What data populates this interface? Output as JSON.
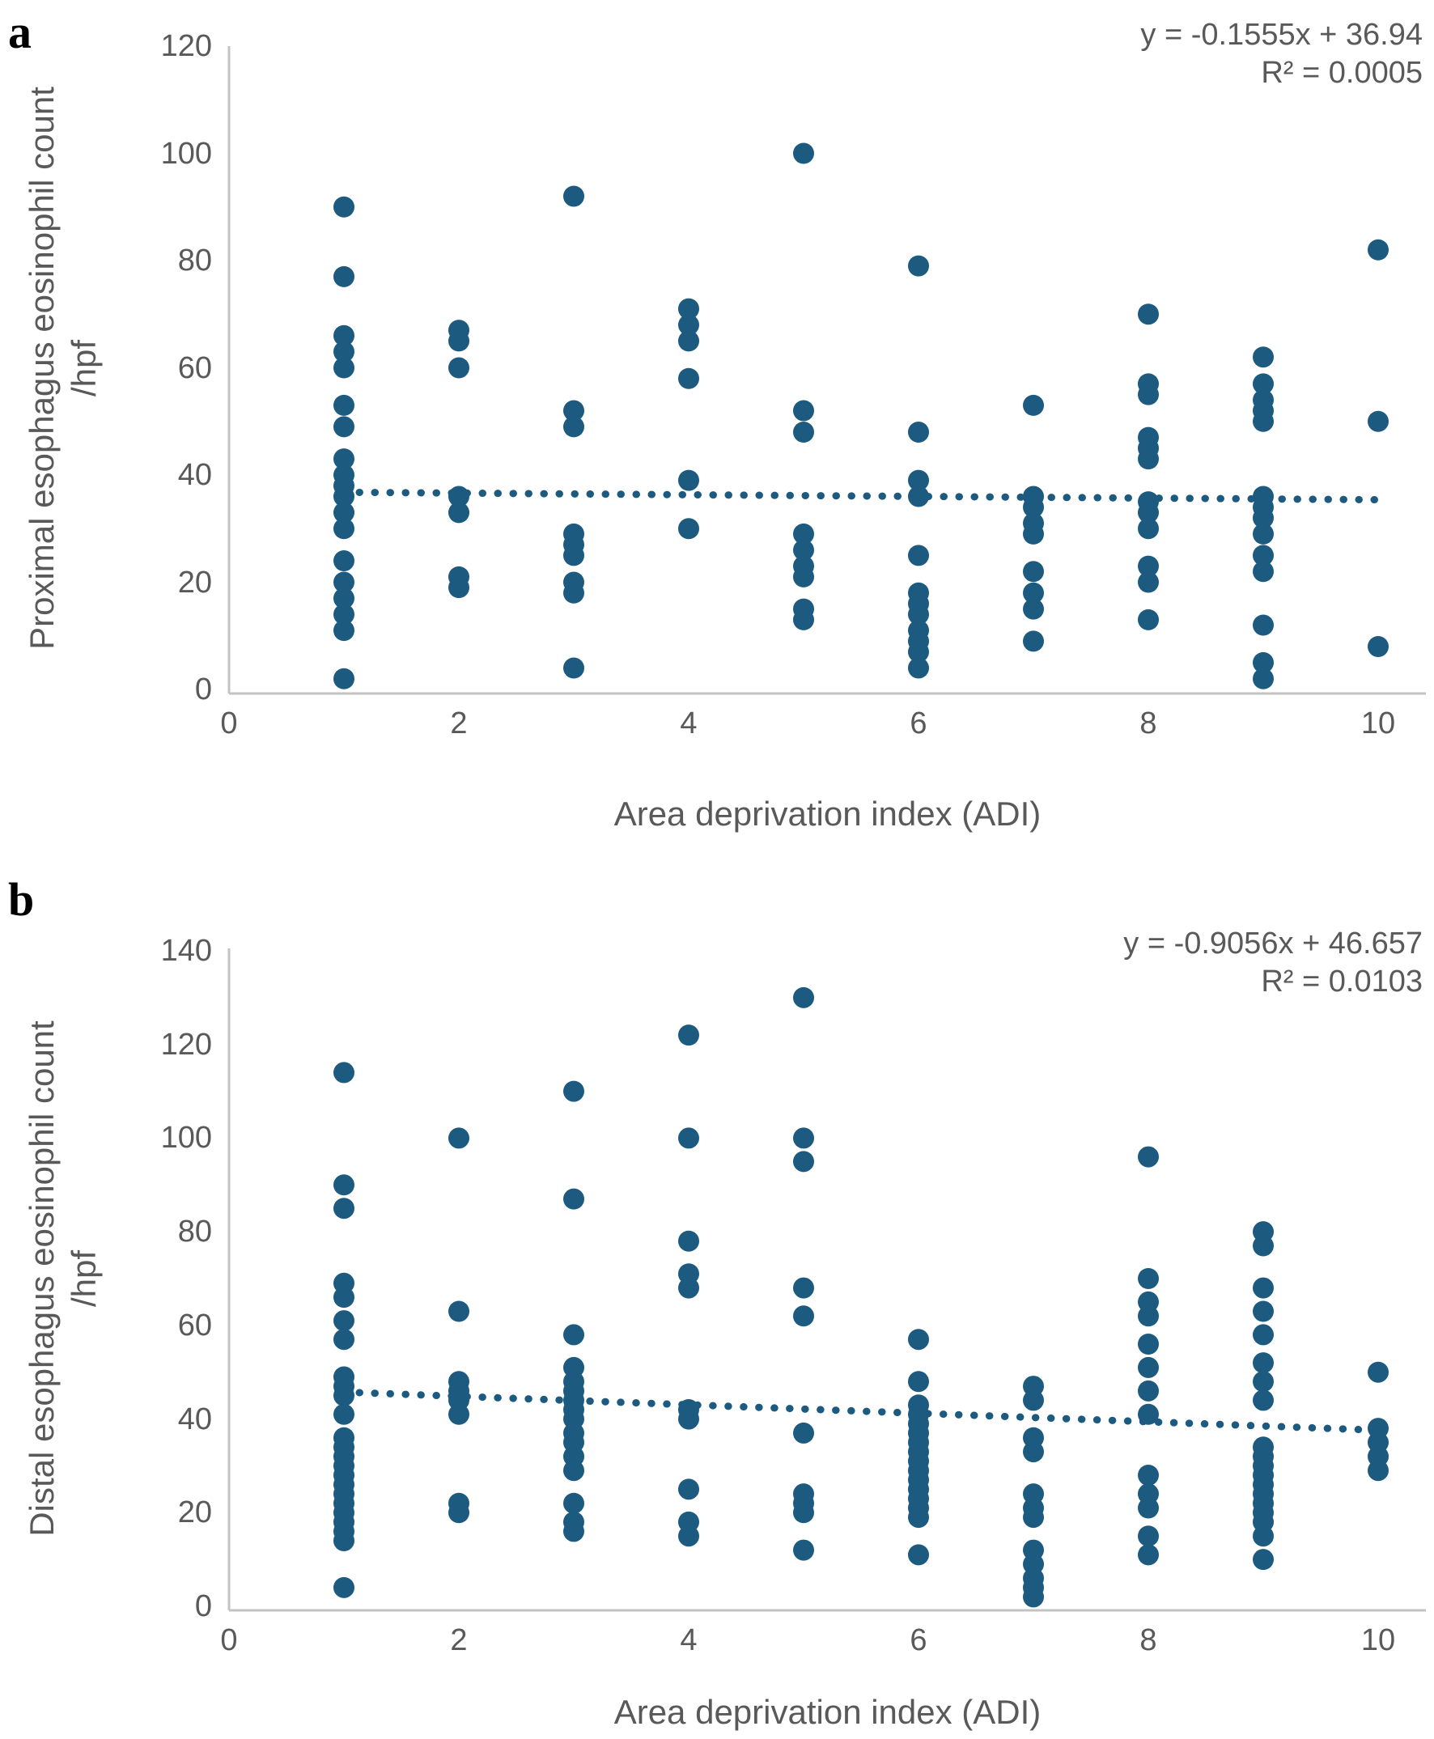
{
  "colors": {
    "marker": "#1d5a80",
    "trend": "#1d5a80",
    "axis_line": "#c3c3c3",
    "text": "#595959",
    "panel_label": "#000000"
  },
  "chart_data": [
    {
      "type": "scatter",
      "label": "a",
      "equation": "y = -0.1555x + 36.94",
      "r2": "R² = 0.0005",
      "x_axis": {
        "title": "Area deprivation index (ADI)",
        "min": 0,
        "max": 10,
        "ticks": [
          0,
          2,
          4,
          6,
          8,
          10
        ]
      },
      "y_axis": {
        "title": "Proximal esophagus eosinophil count",
        "subtitle": "/hpf",
        "min": 0,
        "max": 120,
        "ticks": [
          0,
          20,
          40,
          60,
          80,
          100,
          120
        ]
      },
      "trend": {
        "slope": -0.1555,
        "intercept": 36.94
      },
      "legend": "none",
      "grid": false,
      "series": [
        {
          "x": 1,
          "ys": [
            90,
            77,
            66,
            63,
            60,
            53,
            49,
            43,
            40,
            38,
            36,
            33,
            30,
            24,
            20,
            17,
            14,
            11,
            2
          ]
        },
        {
          "x": 2,
          "ys": [
            67,
            65,
            60,
            36,
            33,
            21,
            19
          ]
        },
        {
          "x": 3,
          "ys": [
            92,
            52,
            49,
            29,
            27,
            25,
            20,
            18,
            4
          ]
        },
        {
          "x": 4,
          "ys": [
            71,
            68,
            65,
            58,
            39,
            30
          ]
        },
        {
          "x": 5,
          "ys": [
            100,
            52,
            48,
            29,
            26,
            23,
            21,
            15,
            13
          ]
        },
        {
          "x": 6,
          "ys": [
            79,
            48,
            39,
            36,
            25,
            18,
            16,
            14,
            11,
            9,
            7,
            4
          ]
        },
        {
          "x": 7,
          "ys": [
            53,
            36,
            34,
            31,
            29,
            22,
            18,
            15,
            9
          ]
        },
        {
          "x": 8,
          "ys": [
            70,
            57,
            55,
            47,
            45,
            43,
            35,
            33,
            30,
            23,
            20,
            13
          ]
        },
        {
          "x": 9,
          "ys": [
            62,
            57,
            54,
            52,
            50,
            36,
            34,
            32,
            29,
            25,
            22,
            12,
            5,
            2
          ]
        },
        {
          "x": 10,
          "ys": [
            82,
            50,
            8
          ]
        }
      ]
    },
    {
      "type": "scatter",
      "label": "b",
      "equation": "y = -0.9056x + 46.657",
      "r2": "R² = 0.0103",
      "x_axis": {
        "title": "Area deprivation index (ADI)",
        "min": 0,
        "max": 10,
        "ticks": [
          0,
          2,
          4,
          6,
          8,
          10
        ]
      },
      "y_axis": {
        "title": "Distal esophagus eosinophil count",
        "subtitle": "/hpf",
        "min": 0,
        "max": 140,
        "ticks": [
          0,
          20,
          40,
          60,
          80,
          100,
          120,
          140
        ]
      },
      "trend": {
        "slope": -0.9056,
        "intercept": 46.657
      },
      "legend": "none",
      "grid": false,
      "series": [
        {
          "x": 1,
          "ys": [
            114,
            90,
            85,
            69,
            66,
            61,
            57,
            49,
            47,
            45,
            41,
            36,
            34,
            32,
            30,
            28,
            26,
            24,
            22,
            20,
            18,
            16,
            14,
            4
          ]
        },
        {
          "x": 2,
          "ys": [
            100,
            63,
            48,
            46,
            44,
            41,
            22,
            20
          ]
        },
        {
          "x": 3,
          "ys": [
            110,
            87,
            58,
            51,
            48,
            46,
            44,
            42,
            40,
            37,
            35,
            32,
            29,
            22,
            18,
            16
          ]
        },
        {
          "x": 4,
          "ys": [
            122,
            100,
            78,
            71,
            68,
            42,
            40,
            25,
            18,
            15
          ]
        },
        {
          "x": 5,
          "ys": [
            130,
            100,
            95,
            68,
            62,
            37,
            24,
            22,
            20,
            12
          ]
        },
        {
          "x": 6,
          "ys": [
            57,
            48,
            43,
            41,
            39,
            37,
            35,
            33,
            31,
            29,
            27,
            25,
            23,
            21,
            19,
            11
          ]
        },
        {
          "x": 7,
          "ys": [
            47,
            44,
            36,
            33,
            24,
            21,
            19,
            12,
            9,
            6,
            4,
            2
          ]
        },
        {
          "x": 8,
          "ys": [
            96,
            70,
            65,
            62,
            56,
            51,
            46,
            41,
            28,
            24,
            21,
            15,
            11
          ]
        },
        {
          "x": 9,
          "ys": [
            80,
            77,
            68,
            63,
            58,
            52,
            48,
            44,
            34,
            32,
            30,
            28,
            26,
            24,
            22,
            20,
            18,
            15,
            10
          ]
        },
        {
          "x": 10,
          "ys": [
            50,
            38,
            35,
            32,
            29
          ]
        }
      ]
    }
  ]
}
